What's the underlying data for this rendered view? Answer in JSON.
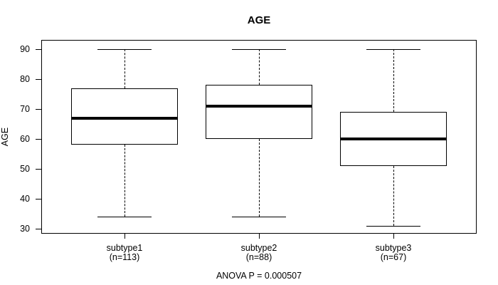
{
  "chart_data": {
    "type": "boxplot",
    "title": "AGE",
    "ylabel": "AGE",
    "xlabel": "",
    "annotation": "ANOVA P = 0.000507",
    "y_ticks": [
      30,
      40,
      50,
      60,
      70,
      80,
      90
    ],
    "ylim": [
      28,
      93
    ],
    "grid": false,
    "groups": [
      {
        "label": "subtype1",
        "n_label": "(n=113)",
        "n": 113,
        "whisker_low": 34,
        "q1": 58,
        "median": 67,
        "q3": 77,
        "whisker_high": 90
      },
      {
        "label": "subtype2",
        "n_label": "(n=88)",
        "n": 88,
        "whisker_low": 34,
        "q1": 60,
        "median": 71,
        "q3": 78,
        "whisker_high": 90
      },
      {
        "label": "subtype3",
        "n_label": "(n=67)",
        "n": 67,
        "whisker_low": 31,
        "q1": 51,
        "median": 60,
        "q3": 69,
        "whisker_high": 90
      }
    ],
    "colors": {
      "line": "#000000",
      "box_fill": "#ffffff",
      "background": "#ffffff"
    }
  }
}
